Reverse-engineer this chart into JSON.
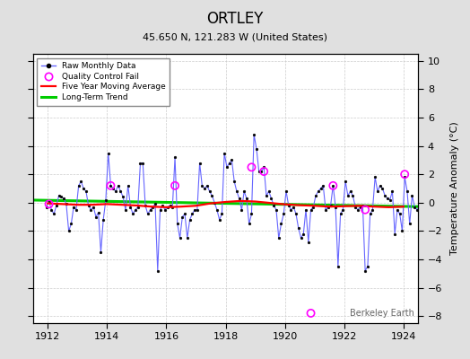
{
  "title": "ORTLEY",
  "subtitle": "45.650 N, 121.283 W (United States)",
  "ylabel": "Temperature Anomaly (°C)",
  "watermark": "Berkeley Earth",
  "ylim": [
    -8.5,
    10.5
  ],
  "xlim": [
    1911.5,
    1924.5
  ],
  "xticks": [
    1912,
    1914,
    1916,
    1918,
    1920,
    1922,
    1924
  ],
  "yticks": [
    -8,
    -6,
    -4,
    -2,
    0,
    2,
    4,
    6,
    8,
    10
  ],
  "bg_color": "#e0e0e0",
  "plot_bg_color": "#ffffff",
  "raw_color": "#6666ff",
  "raw_lw": 0.8,
  "ma_color": "#ff0000",
  "ma_lw": 1.6,
  "trend_color": "#00cc00",
  "trend_lw": 2.2,
  "qc_color": "magenta",
  "raw_data": [
    [
      1911.958,
      -0.3
    ],
    [
      1912.042,
      0.1
    ],
    [
      1912.125,
      -0.5
    ],
    [
      1912.208,
      -0.8
    ],
    [
      1912.292,
      -0.2
    ],
    [
      1912.375,
      0.5
    ],
    [
      1912.458,
      0.4
    ],
    [
      1912.542,
      0.3
    ],
    [
      1912.625,
      -0.1
    ],
    [
      1912.708,
      -2.0
    ],
    [
      1912.792,
      -1.5
    ],
    [
      1912.875,
      -0.3
    ],
    [
      1912.958,
      -0.5
    ],
    [
      1913.042,
      1.2
    ],
    [
      1913.125,
      1.5
    ],
    [
      1913.208,
      1.0
    ],
    [
      1913.292,
      0.8
    ],
    [
      1913.375,
      -0.2
    ],
    [
      1913.458,
      -0.5
    ],
    [
      1913.542,
      -0.3
    ],
    [
      1913.625,
      -1.0
    ],
    [
      1913.708,
      -0.7
    ],
    [
      1913.792,
      -3.5
    ],
    [
      1913.875,
      -1.2
    ],
    [
      1913.958,
      0.2
    ],
    [
      1914.042,
      3.5
    ],
    [
      1914.125,
      1.2
    ],
    [
      1914.208,
      1.0
    ],
    [
      1914.292,
      0.8
    ],
    [
      1914.375,
      1.2
    ],
    [
      1914.458,
      0.8
    ],
    [
      1914.542,
      0.4
    ],
    [
      1914.625,
      -0.5
    ],
    [
      1914.708,
      1.2
    ],
    [
      1914.792,
      -0.3
    ],
    [
      1914.875,
      -0.8
    ],
    [
      1914.958,
      -0.5
    ],
    [
      1915.042,
      -0.3
    ],
    [
      1915.125,
      2.8
    ],
    [
      1915.208,
      2.8
    ],
    [
      1915.292,
      -0.2
    ],
    [
      1915.375,
      -0.8
    ],
    [
      1915.458,
      -0.5
    ],
    [
      1915.542,
      -0.3
    ],
    [
      1915.625,
      -0.1
    ],
    [
      1915.708,
      -4.8
    ],
    [
      1915.792,
      -0.5
    ],
    [
      1915.875,
      -0.2
    ],
    [
      1915.958,
      -0.5
    ],
    [
      1916.042,
      -0.3
    ],
    [
      1916.125,
      -0.2
    ],
    [
      1916.208,
      -0.3
    ],
    [
      1916.292,
      3.2
    ],
    [
      1916.375,
      -1.5
    ],
    [
      1916.458,
      -2.5
    ],
    [
      1916.542,
      -1.0
    ],
    [
      1916.625,
      -0.8
    ],
    [
      1916.708,
      -2.5
    ],
    [
      1916.792,
      -1.2
    ],
    [
      1916.875,
      -0.8
    ],
    [
      1916.958,
      -0.5
    ],
    [
      1917.042,
      -0.5
    ],
    [
      1917.125,
      2.8
    ],
    [
      1917.208,
      1.2
    ],
    [
      1917.292,
      1.0
    ],
    [
      1917.375,
      1.2
    ],
    [
      1917.458,
      0.8
    ],
    [
      1917.542,
      0.5
    ],
    [
      1917.625,
      0.0
    ],
    [
      1917.708,
      -0.5
    ],
    [
      1917.792,
      -1.2
    ],
    [
      1917.875,
      -0.8
    ],
    [
      1917.958,
      3.5
    ],
    [
      1918.042,
      2.5
    ],
    [
      1918.125,
      2.8
    ],
    [
      1918.208,
      3.0
    ],
    [
      1918.292,
      1.5
    ],
    [
      1918.375,
      0.8
    ],
    [
      1918.458,
      0.3
    ],
    [
      1918.542,
      -0.5
    ],
    [
      1918.625,
      0.8
    ],
    [
      1918.708,
      0.3
    ],
    [
      1918.792,
      -1.5
    ],
    [
      1918.875,
      -0.8
    ],
    [
      1918.958,
      4.8
    ],
    [
      1919.042,
      3.8
    ],
    [
      1919.125,
      2.2
    ],
    [
      1919.208,
      2.2
    ],
    [
      1919.292,
      2.5
    ],
    [
      1919.375,
      0.5
    ],
    [
      1919.458,
      0.8
    ],
    [
      1919.542,
      0.3
    ],
    [
      1919.625,
      -0.2
    ],
    [
      1919.708,
      -0.5
    ],
    [
      1919.792,
      -2.5
    ],
    [
      1919.875,
      -1.5
    ],
    [
      1919.958,
      -0.8
    ],
    [
      1920.042,
      0.8
    ],
    [
      1920.125,
      -0.2
    ],
    [
      1920.208,
      -0.5
    ],
    [
      1920.292,
      -0.3
    ],
    [
      1920.375,
      -0.8
    ],
    [
      1920.458,
      -1.8
    ],
    [
      1920.542,
      -2.5
    ],
    [
      1920.625,
      -2.2
    ],
    [
      1920.708,
      -0.5
    ],
    [
      1920.792,
      -2.8
    ],
    [
      1920.875,
      -0.5
    ],
    [
      1920.958,
      -0.3
    ],
    [
      1921.042,
      0.5
    ],
    [
      1921.125,
      0.8
    ],
    [
      1921.208,
      1.0
    ],
    [
      1921.292,
      1.2
    ],
    [
      1921.375,
      -0.5
    ],
    [
      1921.458,
      -0.3
    ],
    [
      1921.542,
      -0.2
    ],
    [
      1921.625,
      1.2
    ],
    [
      1921.708,
      -0.3
    ],
    [
      1921.792,
      -4.5
    ],
    [
      1921.875,
      -0.8
    ],
    [
      1921.958,
      -0.5
    ],
    [
      1922.042,
      1.5
    ],
    [
      1922.125,
      0.5
    ],
    [
      1922.208,
      0.8
    ],
    [
      1922.292,
      0.5
    ],
    [
      1922.375,
      -0.3
    ],
    [
      1922.458,
      -0.5
    ],
    [
      1922.542,
      -0.3
    ],
    [
      1922.625,
      -0.2
    ],
    [
      1922.708,
      -4.8
    ],
    [
      1922.792,
      -4.5
    ],
    [
      1922.875,
      -0.8
    ],
    [
      1922.958,
      -0.5
    ],
    [
      1923.042,
      1.8
    ],
    [
      1923.125,
      0.8
    ],
    [
      1923.208,
      1.2
    ],
    [
      1923.292,
      1.0
    ],
    [
      1923.375,
      0.5
    ],
    [
      1923.458,
      0.3
    ],
    [
      1923.542,
      0.2
    ],
    [
      1923.625,
      0.8
    ],
    [
      1923.708,
      -2.2
    ],
    [
      1923.792,
      -0.5
    ],
    [
      1923.875,
      -0.8
    ],
    [
      1923.958,
      -2.0
    ],
    [
      1924.042,
      1.8
    ],
    [
      1924.125,
      0.8
    ],
    [
      1924.208,
      -1.5
    ],
    [
      1924.292,
      0.5
    ],
    [
      1924.375,
      -0.3
    ],
    [
      1924.458,
      -0.5
    ],
    [
      1924.542,
      -0.3
    ]
  ],
  "qc_points": [
    [
      1912.042,
      -0.1
    ],
    [
      1914.125,
      1.2
    ],
    [
      1916.292,
      1.2
    ],
    [
      1918.875,
      2.5
    ],
    [
      1919.292,
      2.2
    ],
    [
      1920.875,
      -7.8
    ],
    [
      1921.625,
      1.2
    ],
    [
      1922.708,
      -0.5
    ],
    [
      1924.042,
      2.0
    ]
  ],
  "ma_data": [
    [
      1912.0,
      -0.05
    ],
    [
      1912.5,
      -0.1
    ],
    [
      1913.0,
      -0.15
    ],
    [
      1913.5,
      -0.15
    ],
    [
      1914.0,
      -0.1
    ],
    [
      1914.5,
      -0.15
    ],
    [
      1915.0,
      -0.2
    ],
    [
      1915.5,
      -0.28
    ],
    [
      1916.0,
      -0.32
    ],
    [
      1916.5,
      -0.28
    ],
    [
      1917.0,
      -0.22
    ],
    [
      1917.5,
      -0.05
    ],
    [
      1918.0,
      0.05
    ],
    [
      1918.5,
      0.12
    ],
    [
      1919.0,
      0.08
    ],
    [
      1919.5,
      -0.02
    ],
    [
      1920.0,
      -0.12
    ],
    [
      1920.5,
      -0.18
    ],
    [
      1921.0,
      -0.22
    ],
    [
      1921.5,
      -0.28
    ],
    [
      1922.0,
      -0.25
    ],
    [
      1922.5,
      -0.22
    ],
    [
      1923.0,
      -0.28
    ],
    [
      1923.5,
      -0.32
    ],
    [
      1924.0,
      -0.28
    ]
  ],
  "trend_data": [
    [
      1911.5,
      0.18
    ],
    [
      1924.5,
      -0.28
    ]
  ]
}
